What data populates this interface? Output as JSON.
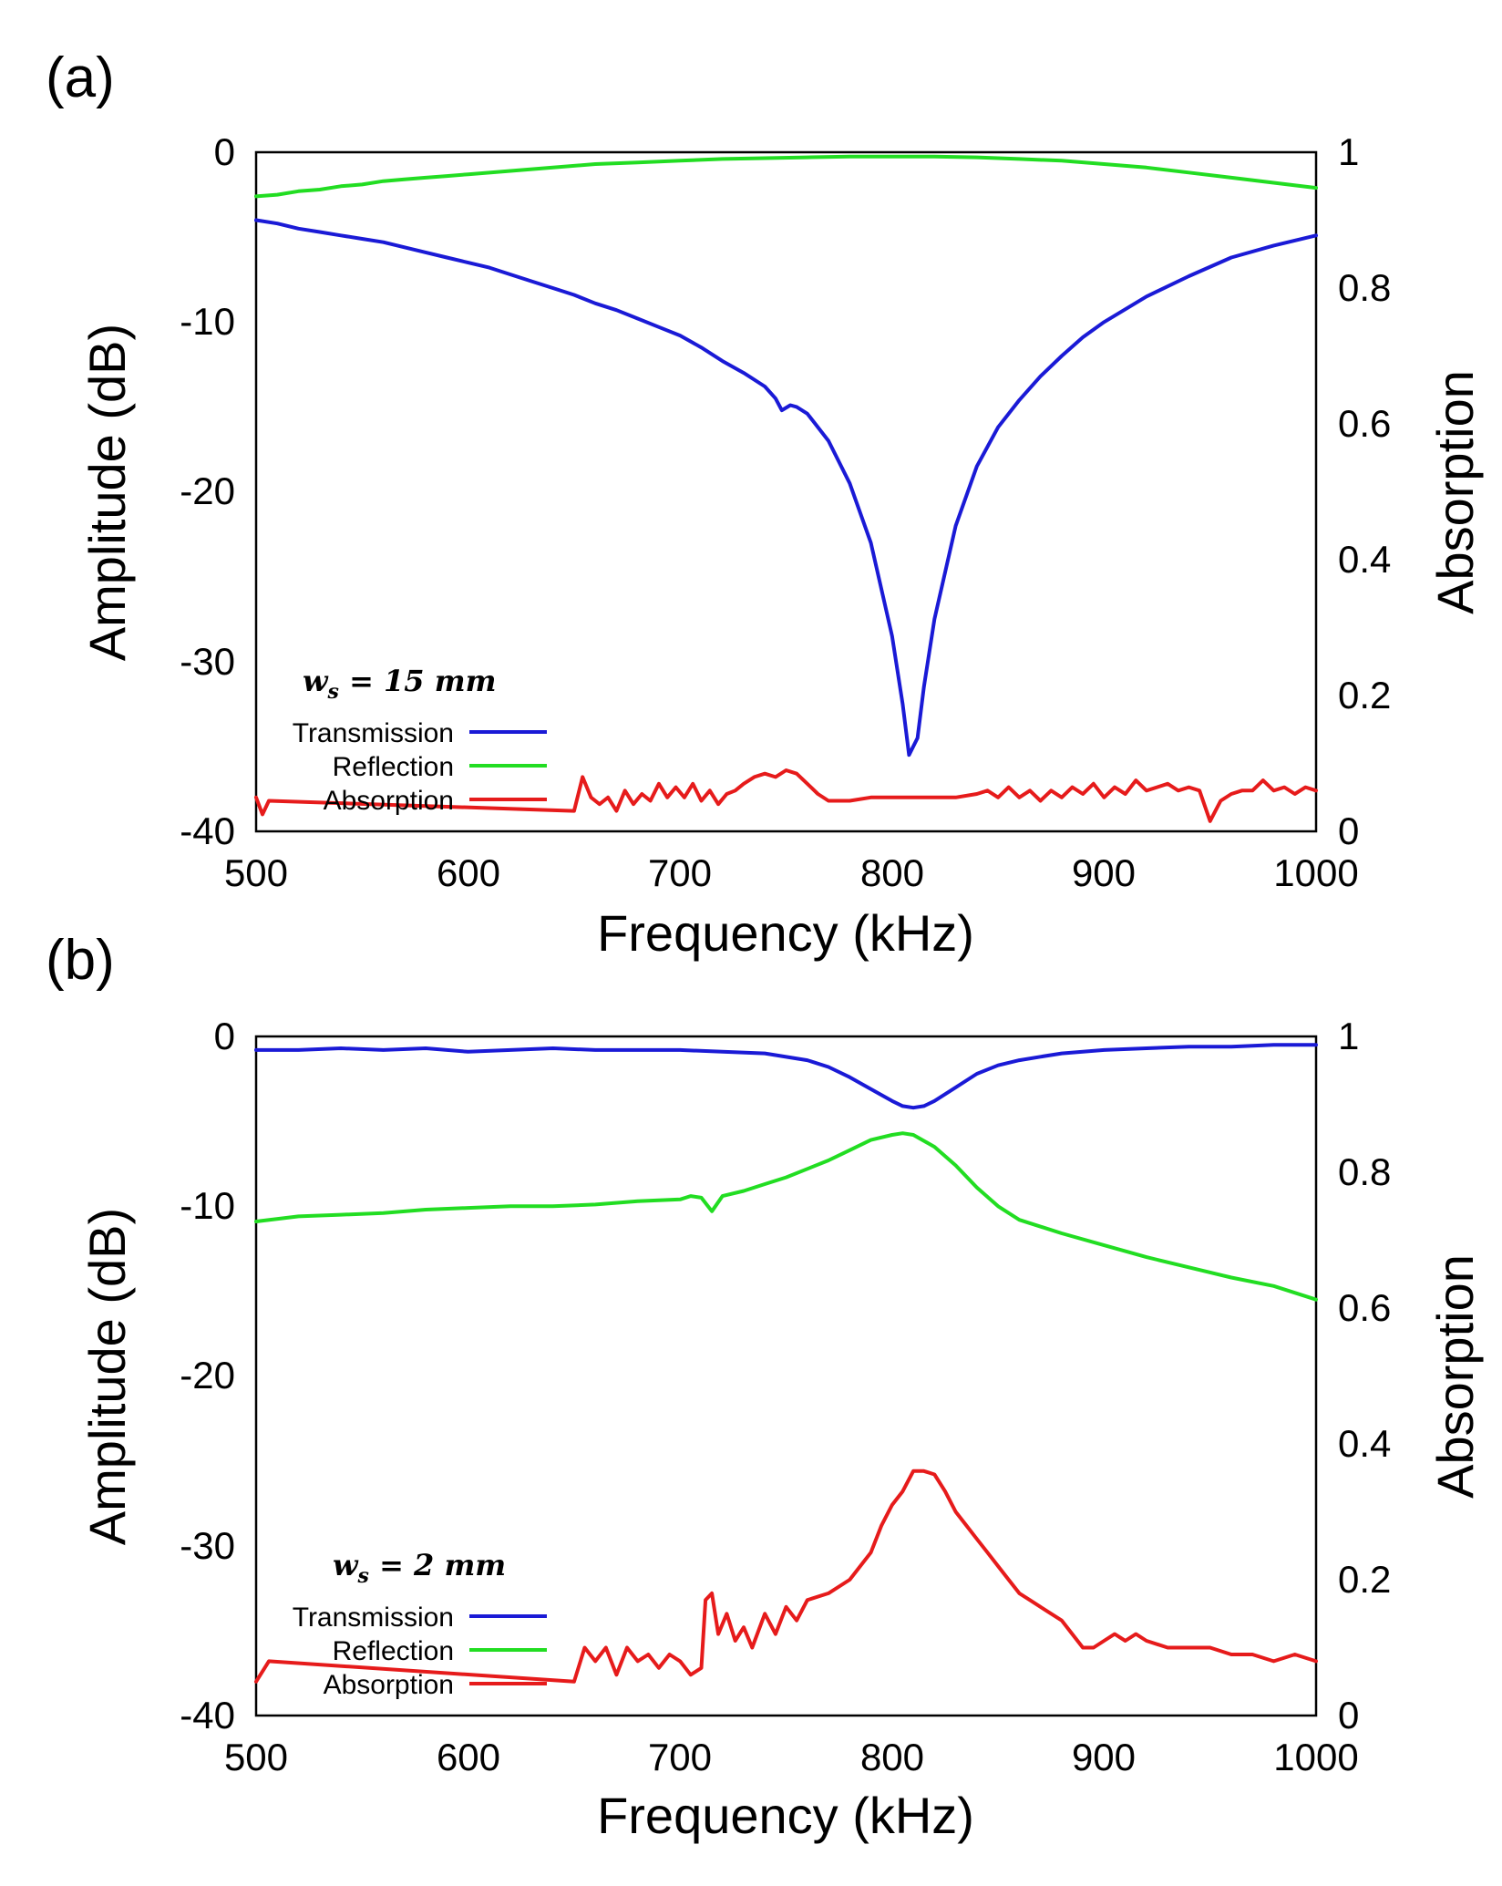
{
  "chart_data": [
    {
      "type": "line",
      "panel_label": "(a)",
      "annotation": {
        "symbol": "w",
        "subscript": "s",
        "text": " = 15 mm"
      },
      "xlabel": "Frequency (kHz)",
      "ylabel": "Amplitude (dB)",
      "y2label": "Absorption",
      "xlim": [
        500,
        1000
      ],
      "ylim": [
        -40,
        0
      ],
      "y2lim": [
        0,
        1
      ],
      "xticks": [
        500,
        600,
        700,
        800,
        900,
        1000
      ],
      "yticks": [
        0,
        -10,
        -20,
        -30,
        -40
      ],
      "y2ticks": [
        "0",
        "0.2",
        "0.4",
        "0.6",
        "0.8",
        "1"
      ],
      "legend": [
        "Transmission",
        "Reflection",
        "Absorption"
      ],
      "legend_position": "bottom-left",
      "series": [
        {
          "name": "Transmission",
          "axis": "left",
          "color": "#1a1ad6",
          "x": [
            500,
            510,
            520,
            530,
            540,
            550,
            560,
            570,
            580,
            590,
            600,
            610,
            620,
            630,
            640,
            650,
            660,
            670,
            680,
            690,
            700,
            710,
            720,
            730,
            740,
            745,
            748,
            752,
            755,
            760,
            770,
            780,
            790,
            800,
            805,
            808,
            812,
            815,
            820,
            830,
            840,
            850,
            860,
            870,
            880,
            890,
            900,
            920,
            940,
            960,
            980,
            1000
          ],
          "y": [
            -4.0,
            -4.2,
            -4.5,
            -4.7,
            -4.9,
            -5.1,
            -5.3,
            -5.6,
            -5.9,
            -6.2,
            -6.5,
            -6.8,
            -7.2,
            -7.6,
            -8.0,
            -8.4,
            -8.9,
            -9.3,
            -9.8,
            -10.3,
            -10.8,
            -11.5,
            -12.3,
            -13.0,
            -13.8,
            -14.5,
            -15.2,
            -14.9,
            -15.0,
            -15.4,
            -17.0,
            -19.5,
            -23.0,
            -28.5,
            -32.5,
            -35.5,
            -34.5,
            -31.5,
            -27.5,
            -22.0,
            -18.5,
            -16.2,
            -14.6,
            -13.2,
            -12.0,
            -10.9,
            -10.0,
            -8.5,
            -7.3,
            -6.2,
            -5.5,
            -4.9
          ]
        },
        {
          "name": "Reflection",
          "axis": "left",
          "color": "#22dd22",
          "x": [
            500,
            510,
            520,
            530,
            540,
            550,
            560,
            570,
            580,
            590,
            600,
            620,
            640,
            660,
            680,
            700,
            720,
            740,
            760,
            780,
            800,
            820,
            840,
            860,
            880,
            900,
            920,
            940,
            960,
            980,
            1000
          ],
          "y": [
            -2.6,
            -2.5,
            -2.3,
            -2.2,
            -2.0,
            -1.9,
            -1.7,
            -1.6,
            -1.5,
            -1.4,
            -1.3,
            -1.1,
            -0.9,
            -0.7,
            -0.6,
            -0.5,
            -0.4,
            -0.35,
            -0.3,
            -0.25,
            -0.25,
            -0.25,
            -0.3,
            -0.4,
            -0.5,
            -0.7,
            -0.9,
            -1.2,
            -1.5,
            -1.8,
            -2.1
          ]
        },
        {
          "name": "Absorption",
          "axis": "right",
          "color": "#e61b1b",
          "x": [
            500,
            503,
            506,
            650,
            654,
            658,
            662,
            666,
            670,
            674,
            678,
            682,
            686,
            690,
            694,
            698,
            702,
            706,
            710,
            714,
            718,
            722,
            726,
            730,
            735,
            740,
            745,
            750,
            755,
            760,
            765,
            770,
            780,
            790,
            800,
            810,
            820,
            830,
            840,
            845,
            850,
            855,
            860,
            865,
            870,
            875,
            880,
            885,
            890,
            895,
            900,
            905,
            910,
            915,
            920,
            925,
            930,
            935,
            940,
            945,
            950,
            955,
            960,
            965,
            970,
            975,
            980,
            985,
            990,
            995,
            1000
          ],
          "y": [
            0.05,
            0.025,
            0.045,
            0.03,
            0.08,
            0.05,
            0.04,
            0.05,
            0.03,
            0.06,
            0.04,
            0.055,
            0.045,
            0.07,
            0.05,
            0.065,
            0.05,
            0.07,
            0.045,
            0.06,
            0.04,
            0.055,
            0.06,
            0.07,
            0.08,
            0.085,
            0.08,
            0.09,
            0.085,
            0.07,
            0.055,
            0.045,
            0.045,
            0.05,
            0.05,
            0.05,
            0.05,
            0.05,
            0.055,
            0.06,
            0.05,
            0.065,
            0.05,
            0.06,
            0.045,
            0.06,
            0.05,
            0.065,
            0.055,
            0.07,
            0.05,
            0.065,
            0.055,
            0.075,
            0.06,
            0.065,
            0.07,
            0.06,
            0.065,
            0.06,
            0.015,
            0.045,
            0.055,
            0.06,
            0.06,
            0.075,
            0.06,
            0.065,
            0.055,
            0.065,
            0.06
          ]
        }
      ]
    },
    {
      "type": "line",
      "panel_label": "(b)",
      "annotation": {
        "symbol": "w",
        "subscript": "s",
        "text": " = 2 mm"
      },
      "xlabel": "Frequency (kHz)",
      "ylabel": "Amplitude (dB)",
      "y2label": "Absorption",
      "xlim": [
        500,
        1000
      ],
      "ylim": [
        -40,
        0
      ],
      "y2lim": [
        0,
        1
      ],
      "xticks": [
        500,
        600,
        700,
        800,
        900,
        1000
      ],
      "yticks": [
        0,
        -10,
        -20,
        -30,
        -40
      ],
      "y2ticks": [
        "0",
        "0.2",
        "0.4",
        "0.6",
        "0.8",
        "1"
      ],
      "legend": [
        "Transmission",
        "Reflection",
        "Absorption"
      ],
      "legend_position": "bottom-left",
      "series": [
        {
          "name": "Transmission",
          "axis": "left",
          "color": "#1a1ad6",
          "x": [
            500,
            520,
            540,
            560,
            580,
            600,
            620,
            640,
            660,
            680,
            700,
            720,
            740,
            760,
            770,
            780,
            790,
            800,
            805,
            810,
            815,
            820,
            830,
            840,
            850,
            860,
            870,
            880,
            900,
            920,
            940,
            960,
            980,
            1000
          ],
          "y": [
            -0.8,
            -0.8,
            -0.7,
            -0.8,
            -0.7,
            -0.9,
            -0.8,
            -0.7,
            -0.8,
            -0.8,
            -0.8,
            -0.9,
            -1.0,
            -1.4,
            -1.8,
            -2.4,
            -3.1,
            -3.8,
            -4.1,
            -4.2,
            -4.1,
            -3.8,
            -3.0,
            -2.2,
            -1.7,
            -1.4,
            -1.2,
            -1.0,
            -0.8,
            -0.7,
            -0.6,
            -0.6,
            -0.5,
            -0.5
          ]
        },
        {
          "name": "Reflection",
          "axis": "left",
          "color": "#22dd22",
          "x": [
            500,
            520,
            540,
            560,
            580,
            600,
            620,
            640,
            660,
            680,
            700,
            705,
            710,
            715,
            720,
            730,
            740,
            750,
            760,
            770,
            780,
            790,
            800,
            805,
            810,
            820,
            830,
            840,
            850,
            860,
            880,
            900,
            920,
            940,
            960,
            980,
            1000
          ],
          "y": [
            -10.9,
            -10.6,
            -10.5,
            -10.4,
            -10.2,
            -10.1,
            -10.0,
            -10.0,
            -9.9,
            -9.7,
            -9.6,
            -9.4,
            -9.5,
            -10.3,
            -9.4,
            -9.1,
            -8.7,
            -8.3,
            -7.8,
            -7.3,
            -6.7,
            -6.1,
            -5.8,
            -5.7,
            -5.8,
            -6.5,
            -7.6,
            -8.9,
            -10.0,
            -10.8,
            -11.6,
            -12.3,
            -13.0,
            -13.6,
            -14.2,
            -14.7,
            -15.5
          ]
        },
        {
          "name": "Absorption",
          "axis": "right",
          "color": "#e61b1b",
          "x": [
            500,
            506,
            650,
            655,
            660,
            665,
            670,
            675,
            680,
            685,
            690,
            695,
            700,
            705,
            710,
            712,
            715,
            718,
            722,
            726,
            730,
            734,
            740,
            745,
            750,
            755,
            760,
            770,
            780,
            790,
            795,
            800,
            805,
            810,
            815,
            820,
            825,
            830,
            835,
            840,
            845,
            850,
            855,
            860,
            865,
            870,
            875,
            880,
            885,
            890,
            895,
            900,
            905,
            910,
            915,
            920,
            930,
            940,
            950,
            960,
            970,
            980,
            990,
            1000
          ],
          "y": [
            0.05,
            0.08,
            0.05,
            0.1,
            0.08,
            0.1,
            0.06,
            0.1,
            0.08,
            0.09,
            0.07,
            0.09,
            0.08,
            0.06,
            0.07,
            0.17,
            0.18,
            0.12,
            0.15,
            0.11,
            0.13,
            0.1,
            0.15,
            0.12,
            0.16,
            0.14,
            0.17,
            0.18,
            0.2,
            0.24,
            0.28,
            0.31,
            0.33,
            0.36,
            0.36,
            0.355,
            0.33,
            0.3,
            0.28,
            0.26,
            0.24,
            0.22,
            0.2,
            0.18,
            0.17,
            0.16,
            0.15,
            0.14,
            0.12,
            0.1,
            0.1,
            0.11,
            0.12,
            0.11,
            0.12,
            0.11,
            0.1,
            0.1,
            0.1,
            0.09,
            0.09,
            0.08,
            0.09,
            0.08
          ]
        }
      ]
    }
  ]
}
